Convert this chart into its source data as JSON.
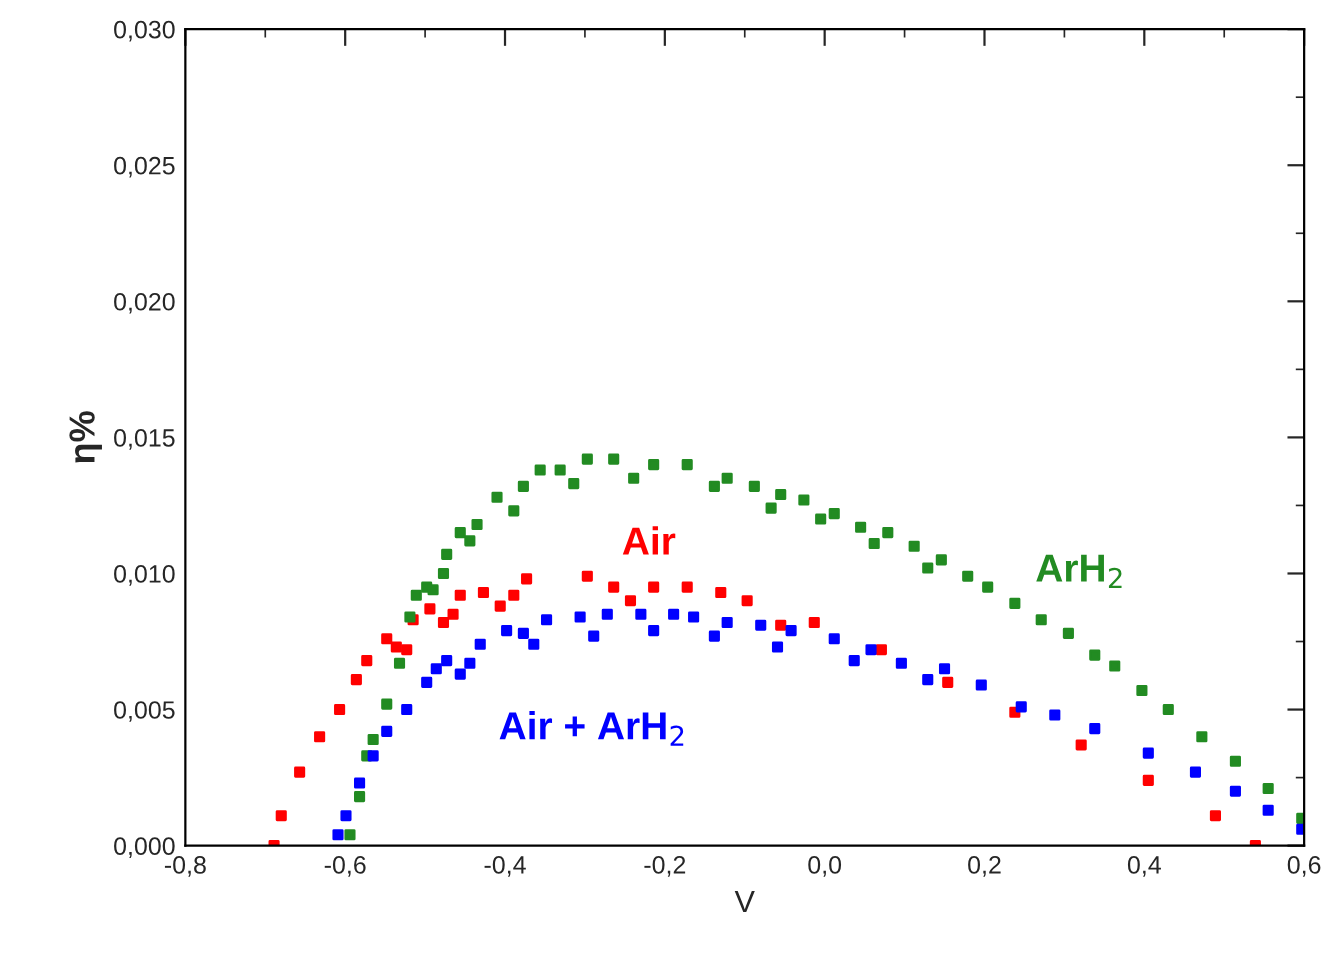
{
  "chart_data": {
    "type": "scatter",
    "xlabel": "V",
    "ylabel": "η%",
    "marker": "square",
    "grid": false,
    "legend": false,
    "xlim": [
      -0.8,
      0.6
    ],
    "ylim": [
      0,
      0.03
    ],
    "xticks": [
      {
        "value": -0.8,
        "label": "-0,8"
      },
      {
        "value": -0.6,
        "label": "-0,6"
      },
      {
        "value": -0.4,
        "label": "-0,4"
      },
      {
        "value": -0.2,
        "label": "-0,2"
      },
      {
        "value": 0.0,
        "label": "0,0"
      },
      {
        "value": 0.2,
        "label": "0,2"
      },
      {
        "value": 0.4,
        "label": "0,4"
      },
      {
        "value": 0.6,
        "label": "0,6"
      }
    ],
    "yticks": [
      {
        "value": 0.0,
        "label": "0,000"
      },
      {
        "value": 0.005,
        "label": "0,005"
      },
      {
        "value": 0.01,
        "label": "0,010"
      },
      {
        "value": 0.015,
        "label": "0,015"
      },
      {
        "value": 0.02,
        "label": "0,020"
      },
      {
        "value": 0.025,
        "label": "0,025"
      },
      {
        "value": 0.03,
        "label": "0,030"
      }
    ],
    "series": [
      {
        "name": "Air",
        "color": "#ff0000",
        "x": [
          -0.689,
          -0.68,
          -0.657,
          -0.632,
          -0.607,
          -0.586,
          -0.573,
          -0.548,
          -0.536,
          -0.523,
          -0.515,
          -0.494,
          -0.477,
          -0.465,
          -0.456,
          -0.427,
          -0.406,
          -0.389,
          -0.373,
          -0.297,
          -0.264,
          -0.243,
          -0.214,
          -0.172,
          -0.13,
          -0.097,
          -0.055,
          -0.013,
          0.071,
          0.154,
          0.238,
          0.321,
          0.405,
          0.489,
          0.539
        ],
        "values": [
          0.0,
          0.0011,
          0.0027,
          0.004,
          0.005,
          0.0061,
          0.0068,
          0.0076,
          0.0073,
          0.0072,
          0.0083,
          0.0087,
          0.0082,
          0.0085,
          0.0092,
          0.0093,
          0.0088,
          0.0092,
          0.0098,
          0.0099,
          0.0095,
          0.009,
          0.0095,
          0.0095,
          0.0093,
          0.009,
          0.0081,
          0.0082,
          0.0072,
          0.006,
          0.0049,
          0.0037,
          0.0024,
          0.0011,
          0.0
        ]
      },
      {
        "name": "ArH$_{2}$",
        "color": "#228b22",
        "x": [
          -0.594,
          -0.582,
          -0.573,
          -0.565,
          -0.548,
          -0.532,
          -0.519,
          -0.511,
          -0.498,
          -0.49,
          -0.477,
          -0.473,
          -0.456,
          -0.444,
          -0.435,
          -0.41,
          -0.389,
          -0.377,
          -0.356,
          -0.331,
          -0.314,
          -0.297,
          -0.264,
          -0.239,
          -0.214,
          -0.172,
          -0.138,
          -0.122,
          -0.088,
          -0.067,
          -0.055,
          -0.026,
          -0.005,
          0.012,
          0.045,
          0.062,
          0.079,
          0.112,
          0.129,
          0.146,
          0.179,
          0.204,
          0.238,
          0.271,
          0.305,
          0.338,
          0.363,
          0.397,
          0.43,
          0.472,
          0.514,
          0.555,
          0.597
        ],
        "values": [
          0.0004,
          0.0018,
          0.0033,
          0.0039,
          0.0052,
          0.0067,
          0.0084,
          0.0092,
          0.0095,
          0.0094,
          0.01,
          0.0107,
          0.0115,
          0.0112,
          0.0118,
          0.0128,
          0.0123,
          0.0132,
          0.0138,
          0.0138,
          0.0133,
          0.0142,
          0.0142,
          0.0135,
          0.014,
          0.014,
          0.0132,
          0.0135,
          0.0132,
          0.0124,
          0.0129,
          0.0127,
          0.012,
          0.0122,
          0.0117,
          0.0111,
          0.0115,
          0.011,
          0.0102,
          0.0105,
          0.0099,
          0.0095,
          0.0089,
          0.0083,
          0.0078,
          0.007,
          0.0066,
          0.0057,
          0.005,
          0.004,
          0.0031,
          0.0021,
          0.001
        ]
      },
      {
        "name": "Air + ArH$_{2}$",
        "color": "#0000ff",
        "x": [
          -0.609,
          -0.599,
          -0.582,
          -0.565,
          -0.548,
          -0.523,
          -0.498,
          -0.486,
          -0.473,
          -0.456,
          -0.444,
          -0.431,
          -0.398,
          -0.377,
          -0.364,
          -0.348,
          -0.306,
          -0.289,
          -0.272,
          -0.23,
          -0.214,
          -0.189,
          -0.164,
          -0.138,
          -0.122,
          -0.08,
          -0.059,
          -0.042,
          0.012,
          0.037,
          0.058,
          0.096,
          0.129,
          0.15,
          0.196,
          0.246,
          0.288,
          0.338,
          0.405,
          0.464,
          0.514,
          0.555,
          0.597
        ],
        "values": [
          0.0004,
          0.0011,
          0.0023,
          0.0033,
          0.0042,
          0.005,
          0.006,
          0.0065,
          0.0068,
          0.0063,
          0.0067,
          0.0074,
          0.0079,
          0.0078,
          0.0074,
          0.0083,
          0.0084,
          0.0077,
          0.0085,
          0.0085,
          0.0079,
          0.0085,
          0.0084,
          0.0077,
          0.0082,
          0.0081,
          0.0073,
          0.0079,
          0.0076,
          0.0068,
          0.0072,
          0.0067,
          0.0061,
          0.0065,
          0.0059,
          0.0051,
          0.0048,
          0.0043,
          0.0034,
          0.0027,
          0.002,
          0.0013,
          0.0006
        ]
      }
    ]
  }
}
